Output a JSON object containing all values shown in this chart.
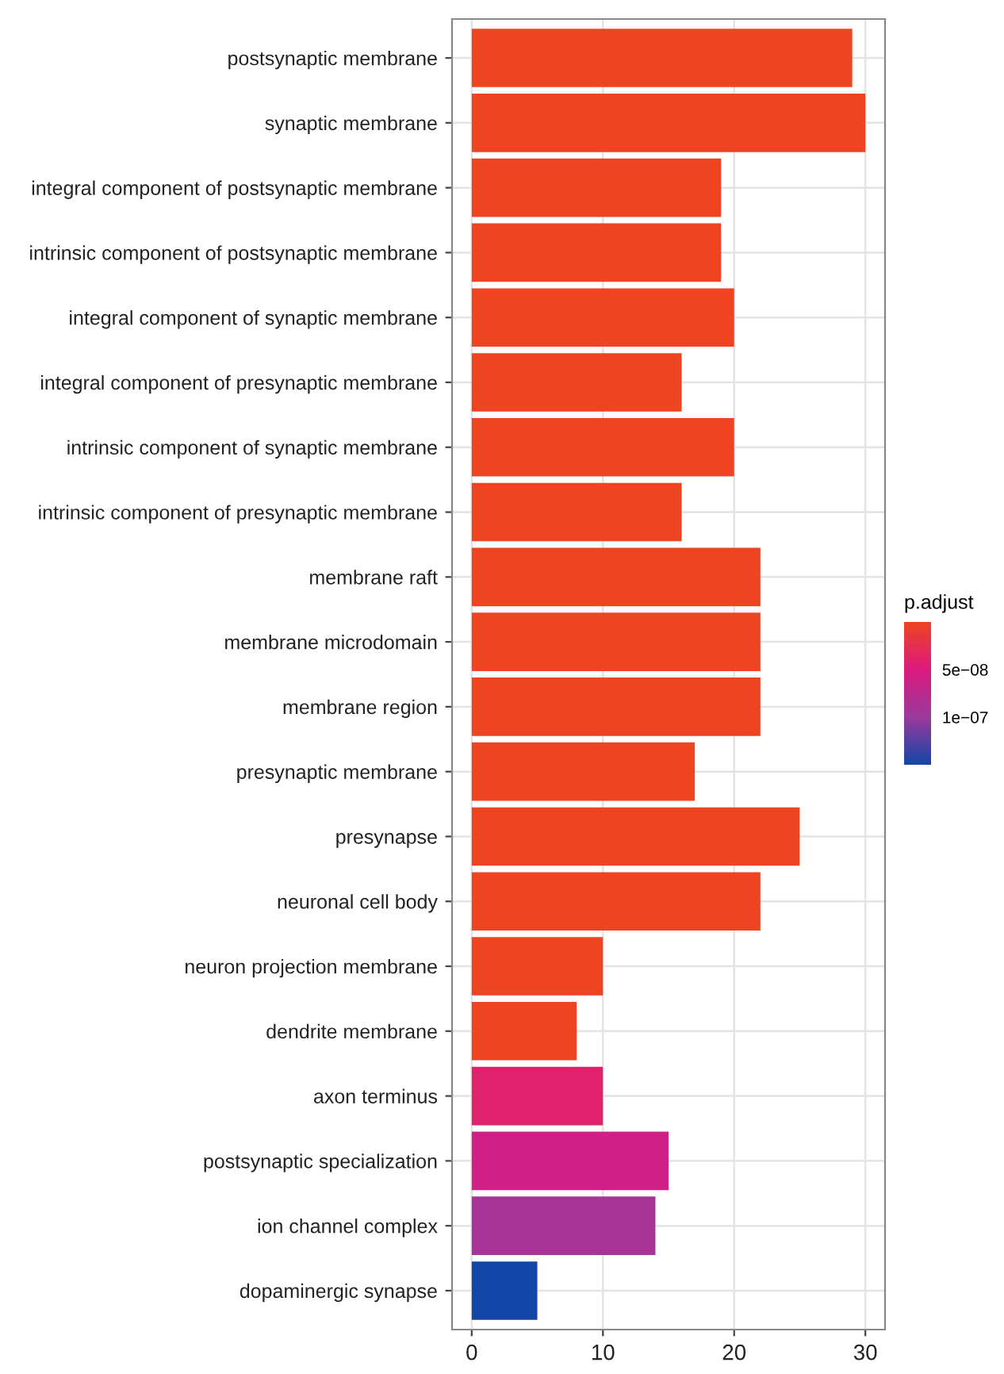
{
  "chart_data": {
    "type": "bar",
    "orientation": "horizontal",
    "categories": [
      "postsynaptic membrane",
      "synaptic membrane",
      "integral component of postsynaptic membrane",
      "intrinsic component of postsynaptic membrane",
      "integral component of synaptic membrane",
      "integral component of presynaptic membrane",
      "intrinsic component of synaptic membrane",
      "intrinsic component of presynaptic membrane",
      "membrane raft",
      "membrane microdomain",
      "membrane region",
      "presynaptic membrane",
      "presynapse",
      "neuronal cell body",
      "neuron projection membrane",
      "dendrite membrane",
      "axon terminus",
      "postsynaptic specialization",
      "ion channel complex",
      "dopaminergic synapse"
    ],
    "values": [
      29,
      30,
      19,
      19,
      20,
      16,
      20,
      16,
      22,
      22,
      22,
      17,
      25,
      22,
      10,
      8,
      10,
      15,
      14,
      5
    ],
    "cvalues": [
      0,
      0,
      0,
      0,
      0,
      0,
      0,
      0,
      0,
      0,
      0,
      0,
      0,
      0,
      0,
      0,
      4e-08,
      6e-08,
      9e-08,
      1.5e-07
    ],
    "clabel": "p.adjust",
    "clim": [
      1.5e-07,
      0
    ],
    "cticks": [
      {
        "value": 5e-08,
        "label": "5e−08"
      },
      {
        "value": 1e-07,
        "label": "1e−07"
      }
    ],
    "xlim": [
      -1.5,
      31.5
    ],
    "xticks": [
      0,
      10,
      20,
      30
    ],
    "grid": true
  }
}
